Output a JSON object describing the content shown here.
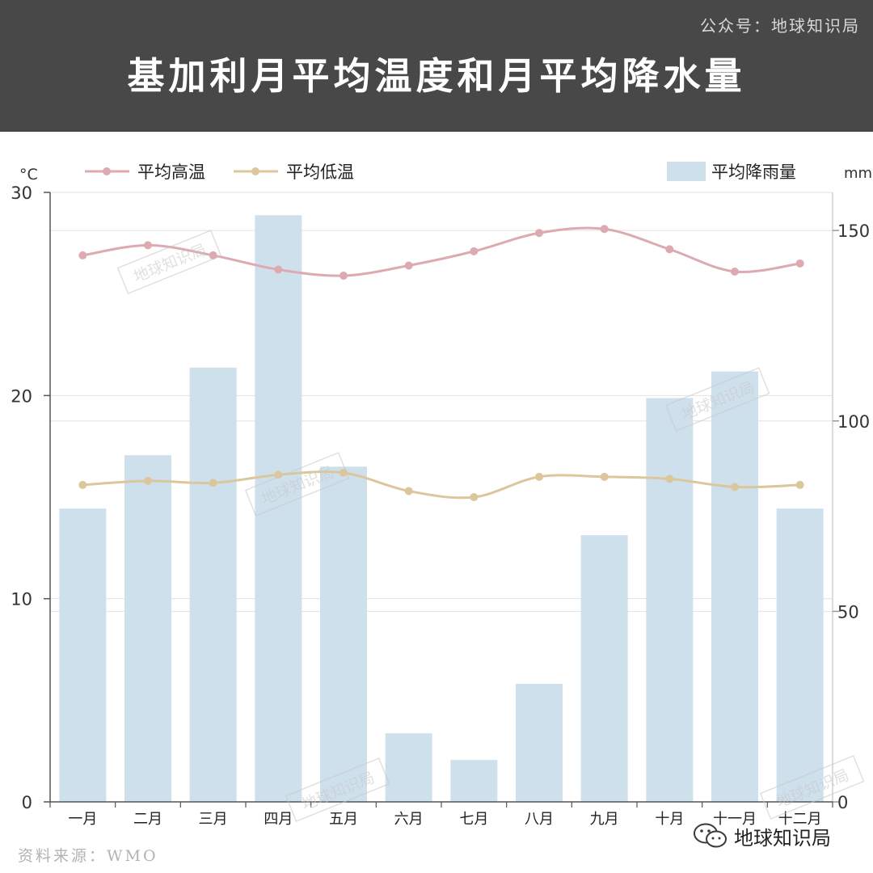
{
  "header": {
    "account": "公众号：地球知识局",
    "title": "基加利月平均温度和月平均降水量"
  },
  "watermark": "地球知识局",
  "footer": {
    "source": "资料来源：WMO",
    "brand": "地球知识局"
  },
  "colors": {
    "high": "#dcaab0",
    "low": "#dcc79d",
    "bar": "#cfe0ed",
    "header_bg": "#484848"
  },
  "chart_data": {
    "type": "bar",
    "categories": [
      "一月",
      "二月",
      "三月",
      "四月",
      "五月",
      "六月",
      "七月",
      "八月",
      "九月",
      "十月",
      "十一月",
      "十二月"
    ],
    "left_unit": "°C",
    "right_unit": "mm",
    "y_left": {
      "min": 0,
      "max": 30,
      "ticks": [
        0,
        10,
        20,
        30
      ]
    },
    "y_right": {
      "min": 0,
      "max": 160,
      "ticks": [
        0,
        50,
        100,
        150
      ]
    },
    "grid": true,
    "legend": [
      "平均高温",
      "平均低温",
      "平均降雨量"
    ],
    "series": [
      {
        "name": "平均高温",
        "type": "line",
        "axis": "left",
        "values": [
          26.9,
          27.4,
          26.9,
          26.2,
          25.9,
          26.4,
          27.1,
          28.0,
          28.2,
          27.2,
          26.1,
          26.5
        ]
      },
      {
        "name": "平均低温",
        "type": "line",
        "axis": "left",
        "values": [
          15.6,
          15.8,
          15.7,
          16.1,
          16.2,
          15.3,
          15.0,
          16.0,
          16.0,
          15.9,
          15.5,
          15.6
        ]
      },
      {
        "name": "平均降雨量",
        "type": "bar",
        "axis": "right",
        "values": [
          77,
          91,
          114,
          154,
          88,
          18,
          11,
          31,
          70,
          106,
          113,
          77
        ]
      }
    ]
  }
}
